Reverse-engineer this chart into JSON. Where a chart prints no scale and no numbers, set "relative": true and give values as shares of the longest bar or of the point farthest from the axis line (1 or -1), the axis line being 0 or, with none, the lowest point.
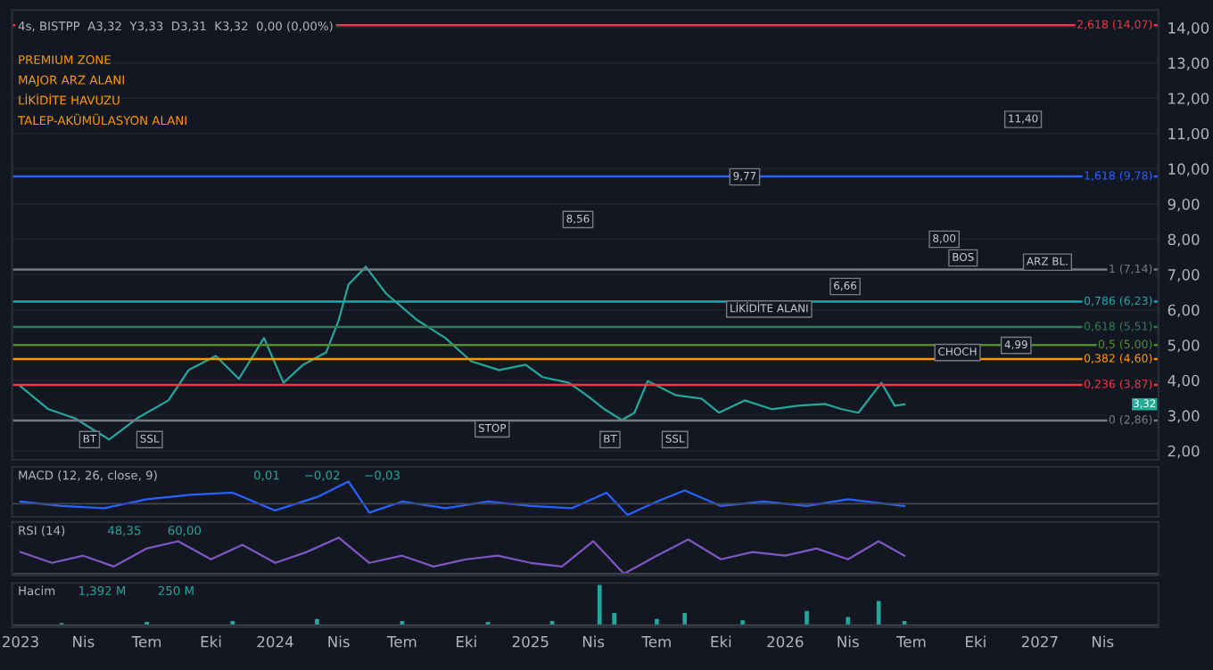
{
  "chart_data": [
    {
      "type": "line",
      "title": "4s, BISTPP  A3,32  Y3,33  D3,31  K3,32  0,00 (0,00%)",
      "x": [
        "2023-01-01",
        "2023-02-10",
        "2023-03-20",
        "2023-05-08",
        "2023-06-17",
        "2023-08-01",
        "2023-08-30",
        "2023-10-08",
        "2023-11-10",
        "2023-12-16",
        "2024-01-13",
        "2024-02-10",
        "2024-03-14",
        "2024-04-01",
        "2024-04-15",
        "2024-05-10",
        "2024-06-08",
        "2024-07-23",
        "2024-09-01",
        "2024-10-08",
        "2024-11-17",
        "2024-12-25",
        "2025-01-18",
        "2025-02-25",
        "2025-03-22",
        "2025-04-17",
        "2025-05-12",
        "2025-05-30",
        "2025-06-18",
        "2025-07-28",
        "2025-09-03",
        "2025-09-28",
        "2025-11-04",
        "2025-12-13",
        "2026-01-19",
        "2026-02-27",
        "2026-03-23",
        "2026-04-16",
        "2026-05-19",
        "2026-06-07",
        "2026-06-21"
      ],
      "series": [
        {
          "color": "#26a69a",
          "values": [
            3.83,
            3.18,
            2.92,
            2.32,
            2.92,
            3.43,
            4.29,
            4.69,
            4.04,
            5.2,
            3.93,
            4.44,
            4.79,
            5.7,
            6.71,
            7.22,
            6.46,
            5.7,
            5.2,
            4.54,
            4.29,
            4.44,
            4.09,
            3.93,
            3.58,
            3.18,
            2.87,
            3.08,
            3.98,
            3.58,
            3.48,
            3.08,
            3.43,
            3.18,
            3.28,
            3.33,
            3.18,
            3.08,
            3.93,
            3.28,
            3.32
          ]
        }
      ],
      "xlim": [
        "2022-12-20",
        "2027-06-20"
      ],
      "ylim": [
        1.75,
        14.5
      ],
      "yticks": [
        {
          "value": 2,
          "label": "2,00"
        },
        {
          "value": 3,
          "label": "3,00"
        },
        {
          "value": 4,
          "label": "4,00"
        },
        {
          "value": 5,
          "label": "5,00"
        },
        {
          "value": 6,
          "label": "6,00"
        },
        {
          "value": 7,
          "label": "7,00"
        },
        {
          "value": 8,
          "label": "8,00"
        },
        {
          "value": 9,
          "label": "9,00"
        },
        {
          "value": 10,
          "label": "10,00"
        },
        {
          "value": 11,
          "label": "11,00"
        },
        {
          "value": 12,
          "label": "12,00"
        },
        {
          "value": 13,
          "label": "13,00"
        },
        {
          "value": 14,
          "label": "14,00"
        }
      ],
      "tick_labels": "y",
      "grid": true,
      "ref_lines": [
        {
          "axis": "y",
          "value": 14.07,
          "label": "2,618 (14,07)",
          "color": "#f23645"
        },
        {
          "axis": "y",
          "value": 9.78,
          "label": "1,618 (9,78)",
          "color": "#2962ff"
        },
        {
          "axis": "y",
          "value": 7.14,
          "label": "1 (7,14)",
          "color": "#787b86"
        },
        {
          "axis": "y",
          "value": 6.23,
          "label": "0,786 (6,23)",
          "color": "#26a6a6"
        },
        {
          "axis": "y",
          "value": 5.51,
          "label": "0,618 (5,51)",
          "color": "#2e7d57"
        },
        {
          "axis": "y",
          "value": 5.0,
          "label": "0,5 (5,00)",
          "color": "#558b2f"
        },
        {
          "axis": "y",
          "value": 4.6,
          "label": "0,382 (4,60)",
          "color": "#ff9800"
        },
        {
          "axis": "y",
          "value": 3.87,
          "label": "0,236 (3,87)",
          "color": "#f23645"
        },
        {
          "axis": "y",
          "value": 2.86,
          "label": "0 (2,86)",
          "color": "#787b86"
        }
      ],
      "annotations": [
        "PREMIUM ZONE",
        "MAJOR ARZ ALANI",
        {
          "text": "11,40",
          "x": "2026-12-08",
          "y": 11.4
        },
        "LİKİDİTE HAVUZU",
        {
          "text": "8,56",
          "x": "2025-03-10",
          "y": 8.56
        },
        {
          "text": "9,77",
          "x": "2025-11-04",
          "y": 9.77
        },
        {
          "text": "BOS",
          "x": "2026-09-13",
          "y": 7.47
        },
        {
          "text": "8,00",
          "x": "2026-08-17",
          "y": 8.0
        },
        {
          "text": "ARZ BL.",
          "x": "2027-01-12",
          "y": 7.35
        },
        {
          "text": "LİKİDİTE ALANI",
          "x": "2025-12-09",
          "y": 6.02
        },
        {
          "text": "6,66",
          "x": "2026-03-28",
          "y": 6.66
        },
        {
          "text": "CHOCH",
          "x": "2026-09-05",
          "y": 4.79
        },
        {
          "text": "4,99",
          "x": "2026-11-28",
          "y": 4.99
        },
        "TALEP-AKÜMÜLASYON ALANI",
        {
          "text": "STOP",
          "x": "2024-11-07",
          "y": 2.62
        },
        {
          "text": "BT",
          "x": "2023-04-10",
          "y": 2.32
        },
        {
          "text": "SSL",
          "x": "2023-07-05",
          "y": 2.32
        },
        {
          "text": "BT",
          "x": "2025-04-25",
          "y": 2.32
        },
        {
          "text": "SSL",
          "x": "2025-07-27",
          "y": 2.32
        },
        {
          "text": "3,32",
          "y": 3.32
        }
      ]
    },
    {
      "type": "line",
      "title": "MACD (12, 26, close, 9)",
      "relative": true,
      "tick_labels": false,
      "x": [
        "2023-01-01",
        "2023-03-01",
        "2023-05-01",
        "2023-07-01",
        "2023-09-01",
        "2023-11-01",
        "2024-01-01",
        "2024-03-01",
        "2024-04-15",
        "2024-05-15",
        "2024-07-01",
        "2024-09-01",
        "2024-11-01",
        "2025-01-01",
        "2025-03-01",
        "2025-04-20",
        "2025-05-20",
        "2025-07-01",
        "2025-08-10",
        "2025-10-01",
        "2025-12-01",
        "2026-02-01",
        "2026-04-01",
        "2026-06-21"
      ],
      "series": [
        {
          "color": "#2962ff",
          "values": [
            0.1,
            -0.1,
            -0.2,
            0.2,
            0.4,
            0.5,
            -0.3,
            0.3,
            1.0,
            -0.4,
            0.1,
            -0.2,
            0.1,
            -0.1,
            -0.2,
            0.5,
            -0.5,
            0.1,
            0.6,
            -0.1,
            0.1,
            -0.1,
            0.2,
            -0.1
          ]
        }
      ],
      "xlim": [
        "2022-12-20",
        "2027-06-20"
      ],
      "annotations": [
        "0,01",
        "−0,02",
        "−0,03"
      ]
    },
    {
      "type": "line",
      "title": "RSI (14)",
      "relative": true,
      "tick_labels": false,
      "x": [
        "2023-01-01",
        "2023-02-15",
        "2023-04-01",
        "2023-05-15",
        "2023-07-01",
        "2023-08-15",
        "2023-10-01",
        "2023-11-15",
        "2024-01-01",
        "2024-02-15",
        "2024-04-01",
        "2024-05-15",
        "2024-07-01",
        "2024-08-15",
        "2024-10-01",
        "2024-11-15",
        "2025-01-01",
        "2025-02-15",
        "2025-04-01",
        "2025-05-15",
        "2025-07-01",
        "2025-08-15",
        "2025-10-01",
        "2025-11-15",
        "2026-01-01",
        "2026-02-15",
        "2026-04-01",
        "2026-05-15",
        "2026-06-21"
      ],
      "series": [
        {
          "color": "#7e57c2",
          "values": [
            0.6,
            0.3,
            0.5,
            0.2,
            0.7,
            0.9,
            0.4,
            0.8,
            0.3,
            0.6,
            1.0,
            0.3,
            0.5,
            0.2,
            0.4,
            0.5,
            0.3,
            0.2,
            0.9,
            0.0,
            0.5,
            0.95,
            0.4,
            0.6,
            0.5,
            0.7,
            0.4,
            0.9,
            0.5
          ]
        }
      ],
      "xlim": [
        "2022-12-20",
        "2027-06-20"
      ],
      "annotations": [
        "48,35",
        "60,00"
      ]
    },
    {
      "type": "bar",
      "title": "Hacim",
      "relative": true,
      "tick_labels": "x",
      "x": [
        "2023-03-01",
        "2023-07-01",
        "2023-11-01",
        "2024-03-01",
        "2024-07-01",
        "2024-11-01",
        "2025-02-01",
        "2025-04-10",
        "2025-05-01",
        "2025-07-01",
        "2025-08-10",
        "2025-11-01",
        "2026-02-01",
        "2026-04-01",
        "2026-05-15",
        "2026-06-21"
      ],
      "series": [
        {
          "color": "#26a69a",
          "values": [
            0.05,
            0.08,
            0.1,
            0.15,
            0.1,
            0.08,
            0.1,
            1.0,
            0.3,
            0.15,
            0.3,
            0.12,
            0.35,
            0.2,
            0.6,
            0.1
          ]
        }
      ],
      "xlim": [
        "2022-12-20",
        "2027-06-20"
      ],
      "xticks": [
        {
          "value": "2023-01-01",
          "label": "2023"
        },
        {
          "value": "2023-04-01",
          "label": "Nis"
        },
        {
          "value": "2023-07-01",
          "label": "Tem"
        },
        {
          "value": "2023-10-01",
          "label": "Eki"
        },
        {
          "value": "2024-01-01",
          "label": "2024"
        },
        {
          "value": "2024-04-01",
          "label": "Nis"
        },
        {
          "value": "2024-07-01",
          "label": "Tem"
        },
        {
          "value": "2024-10-01",
          "label": "Eki"
        },
        {
          "value": "2025-01-01",
          "label": "2025"
        },
        {
          "value": "2025-04-01",
          "label": "Nis"
        },
        {
          "value": "2025-07-01",
          "label": "Tem"
        },
        {
          "value": "2025-10-01",
          "label": "Eki"
        },
        {
          "value": "2026-01-01",
          "label": "2026"
        },
        {
          "value": "2026-04-01",
          "label": "Nis"
        },
        {
          "value": "2026-07-01",
          "label": "Tem"
        },
        {
          "value": "2026-10-01",
          "label": "Eki"
        },
        {
          "value": "2027-01-01",
          "label": "2027"
        },
        {
          "value": "2027-04-01",
          "label": "Nis"
        }
      ],
      "annotations": [
        "1,392 M",
        "250 M"
      ]
    }
  ]
}
